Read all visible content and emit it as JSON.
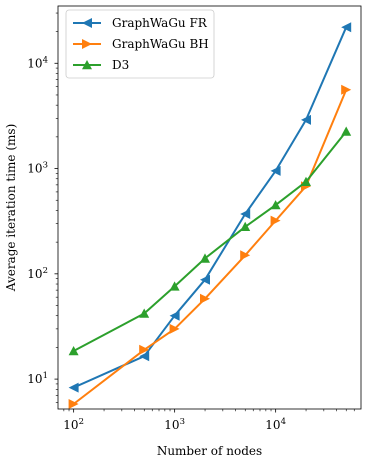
{
  "chart_data": {
    "type": "line",
    "xlabel": "Number of nodes",
    "ylabel": "Average iteration time (ms)",
    "xscale": "log",
    "yscale": "log",
    "xlim": [
      70,
      70000
    ],
    "ylim": [
      5.2,
      35000
    ],
    "x_ticks": [
      {
        "value": 100,
        "base": "10",
        "exp": "2"
      },
      {
        "value": 1000,
        "base": "10",
        "exp": "3"
      },
      {
        "value": 10000,
        "base": "10",
        "exp": "4"
      }
    ],
    "y_ticks": [
      {
        "value": 10,
        "base": "10",
        "exp": "1"
      },
      {
        "value": 100,
        "base": "10",
        "exp": "2"
      },
      {
        "value": 1000,
        "base": "10",
        "exp": "3"
      },
      {
        "value": 10000,
        "base": "10",
        "exp": "4"
      }
    ],
    "grid": false,
    "legend_position": "top-left",
    "series": [
      {
        "name": "GraphWaGu FR",
        "color": "#1f77b4",
        "marker": "triangle-left",
        "x": [
          100,
          500,
          1000,
          2000,
          5000,
          10000,
          20000,
          50000
        ],
        "y": [
          8.3,
          16.5,
          40,
          88,
          370,
          950,
          2900,
          22000
        ]
      },
      {
        "name": "GraphWaGu BH",
        "color": "#ff7f0e",
        "marker": "triangle-right",
        "x": [
          100,
          500,
          1000,
          2000,
          5000,
          10000,
          20000,
          50000
        ],
        "y": [
          5.8,
          19,
          30,
          58,
          150,
          320,
          680,
          5600
        ]
      },
      {
        "name": "D3",
        "color": "#2ca02c",
        "marker": "triangle-up",
        "x": [
          100,
          500,
          1000,
          2000,
          5000,
          10000,
          20000,
          50000
        ],
        "y": [
          18.5,
          42,
          76,
          140,
          280,
          450,
          750,
          2250
        ]
      }
    ]
  }
}
